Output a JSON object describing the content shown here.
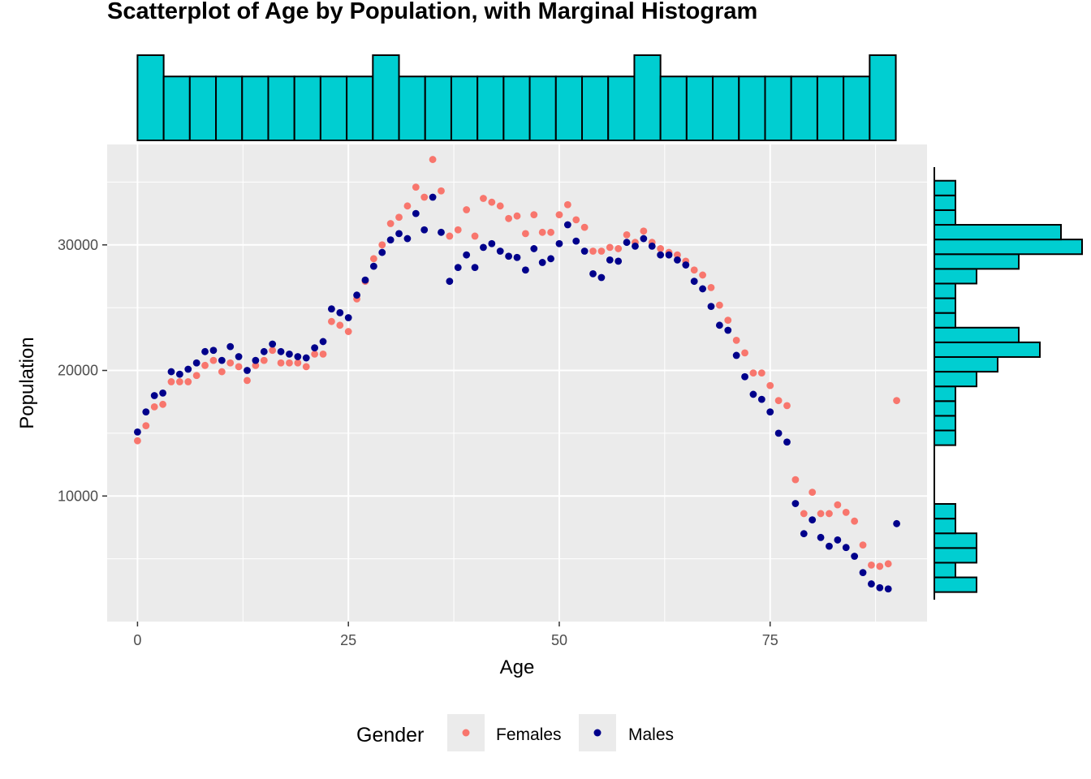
{
  "chart_data": {
    "type": "scatter",
    "title": "Scatterplot of Age by Population, with Marginal Histogram",
    "xlabel": "Age",
    "ylabel": "Population",
    "xlim": [
      -3.6,
      93.6
    ],
    "ylim": [
      0,
      38000
    ],
    "x_ticks": [
      {
        "value": 0,
        "label": "0"
      },
      {
        "value": 25,
        "label": "25"
      },
      {
        "value": 50,
        "label": "50"
      },
      {
        "value": 75,
        "label": "75"
      }
    ],
    "y_ticks": [
      {
        "value": 10000,
        "label": "10000"
      },
      {
        "value": 20000,
        "label": "20000"
      },
      {
        "value": 30000,
        "label": "30000"
      }
    ],
    "x_minor": [
      12.5,
      37.5,
      62.5,
      87.5
    ],
    "y_minor": [
      5000,
      15000,
      25000,
      35000
    ],
    "grid": true,
    "panel_bg": "#ebebeb",
    "legend": {
      "title": "Gender",
      "position": "bottom",
      "items": [
        {
          "label": "Females",
          "color": "#f8766d"
        },
        {
          "label": "Males",
          "color": "#00008b"
        }
      ]
    },
    "series": [
      {
        "name": "Females",
        "color": "#f8766d",
        "x": [
          0,
          1,
          2,
          3,
          4,
          5,
          6,
          7,
          8,
          9,
          10,
          11,
          12,
          13,
          14,
          15,
          16,
          17,
          18,
          19,
          20,
          21,
          22,
          23,
          24,
          25,
          26,
          27,
          28,
          29,
          30,
          31,
          32,
          33,
          34,
          35,
          36,
          37,
          38,
          39,
          40,
          41,
          42,
          43,
          44,
          45,
          46,
          47,
          48,
          49,
          50,
          51,
          52,
          53,
          54,
          55,
          56,
          57,
          58,
          59,
          60,
          61,
          62,
          63,
          64,
          65,
          66,
          67,
          68,
          69,
          70,
          71,
          72,
          73,
          74,
          75,
          76,
          77,
          78,
          79,
          80,
          81,
          82,
          83,
          84,
          85,
          86,
          87,
          88,
          89,
          90
        ],
        "y": [
          14400,
          15600,
          17100,
          17300,
          19100,
          19100,
          19100,
          19600,
          20400,
          20800,
          19900,
          20600,
          20300,
          19200,
          20400,
          20800,
          21600,
          20600,
          20600,
          20600,
          20300,
          21300,
          21300,
          23900,
          23600,
          23100,
          25700,
          27100,
          28900,
          30000,
          31700,
          32200,
          33100,
          34600,
          33800,
          36800,
          34300,
          30700,
          31200,
          32800,
          30700,
          33700,
          33400,
          33100,
          32100,
          32300,
          30900,
          32400,
          31000,
          31000,
          32400,
          33200,
          32000,
          31400,
          29500,
          29500,
          29800,
          29700,
          30800,
          30200,
          31100,
          30200,
          29700,
          29400,
          29200,
          28700,
          28000,
          27600,
          26600,
          25200,
          24000,
          22400,
          21400,
          19800,
          19800,
          18800,
          17600,
          17200,
          11300,
          8600,
          10300,
          8600,
          8600,
          9300,
          8700,
          8000,
          6100,
          4500,
          4400,
          4600,
          17600
        ]
      },
      {
        "name": "Males",
        "color": "#00008b",
        "x": [
          0,
          1,
          2,
          3,
          4,
          5,
          6,
          7,
          8,
          9,
          10,
          11,
          12,
          13,
          14,
          15,
          16,
          17,
          18,
          19,
          20,
          21,
          22,
          23,
          24,
          25,
          26,
          27,
          28,
          29,
          30,
          31,
          32,
          33,
          34,
          35,
          36,
          37,
          38,
          39,
          40,
          41,
          42,
          43,
          44,
          45,
          46,
          47,
          48,
          49,
          50,
          51,
          52,
          53,
          54,
          55,
          56,
          57,
          58,
          59,
          60,
          61,
          62,
          63,
          64,
          65,
          66,
          67,
          68,
          69,
          70,
          71,
          72,
          73,
          74,
          75,
          76,
          77,
          78,
          79,
          80,
          81,
          82,
          83,
          84,
          85,
          86,
          87,
          88,
          89,
          90
        ],
        "y": [
          15100,
          16700,
          18000,
          18200,
          19900,
          19700,
          20100,
          20600,
          21500,
          21600,
          20800,
          21900,
          21100,
          20000,
          20800,
          21500,
          22100,
          21500,
          21300,
          21100,
          21000,
          21800,
          22300,
          24900,
          24600,
          24200,
          26000,
          27200,
          28300,
          29400,
          30400,
          30900,
          30500,
          32500,
          31200,
          33800,
          31000,
          27100,
          28200,
          29200,
          28200,
          29800,
          30100,
          29500,
          29100,
          29000,
          28000,
          29700,
          28600,
          28900,
          30100,
          31600,
          30300,
          29500,
          27700,
          27400,
          28800,
          28700,
          30200,
          29900,
          30500,
          29900,
          29200,
          29200,
          28800,
          28400,
          27100,
          26500,
          25100,
          23600,
          23200,
          21200,
          19500,
          18100,
          17700,
          16700,
          15000,
          14300,
          9400,
          7000,
          8100,
          6700,
          6000,
          6500,
          5900,
          5200,
          3900,
          3000,
          2700,
          2600,
          7800
        ]
      }
    ],
    "marginal_x_hist": {
      "bin_width": 3.1,
      "bin_starts": [
        0,
        3.1,
        6.2,
        9.3,
        12.4,
        15.5,
        18.6,
        21.7,
        24.8,
        27.9,
        31,
        34.1,
        37.2,
        40.3,
        43.4,
        46.5,
        49.6,
        52.7,
        55.8,
        58.9,
        62,
        65.1,
        68.2,
        71.3,
        74.4,
        77.5,
        80.6,
        83.7,
        86.8
      ],
      "counts": [
        4,
        3,
        3,
        3,
        3,
        3,
        3,
        3,
        3,
        4,
        3,
        3,
        3,
        3,
        3,
        3,
        3,
        3,
        3,
        4,
        3,
        3,
        3,
        3,
        3,
        3,
        3,
        3,
        4
      ],
      "max_count": 4,
      "fill": "#00ced1"
    },
    "marginal_y_hist": {
      "bin_width": 1170,
      "bin_starts": [
        2350,
        3520,
        4690,
        5860,
        7030,
        8200,
        9370,
        10540,
        11710,
        12880,
        14050,
        15220,
        16390,
        17560,
        18730,
        19900,
        21070,
        22240,
        23410,
        24580,
        25750,
        26920,
        28090,
        29260,
        30430,
        31600,
        32770,
        33940
      ],
      "counts": [
        2,
        1,
        2,
        2,
        1,
        1,
        0,
        0,
        0,
        0,
        1,
        1,
        1,
        1,
        2,
        3,
        5,
        4,
        1,
        1,
        1,
        2,
        4,
        7,
        6,
        1,
        1,
        1
      ],
      "max_count": 7,
      "fill": "#00ced1"
    }
  }
}
